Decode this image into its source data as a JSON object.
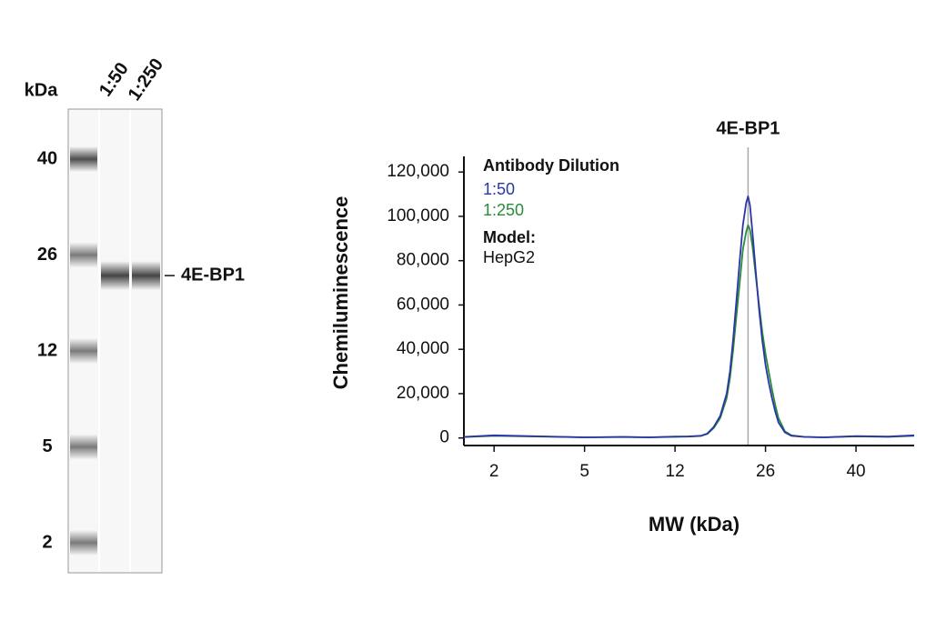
{
  "chart_data": [
    {
      "type": "gel",
      "y_label": "kDa",
      "yticks": [
        40,
        26,
        12,
        5,
        2
      ],
      "lanes": [
        "1:50",
        "1:250"
      ],
      "bands": [
        {
          "name": "4E-BP1",
          "mw": 23
        }
      ]
    },
    {
      "type": "line",
      "annotation": {
        "text": "4E-BP1",
        "x": 23.3
      },
      "x_label": "MW (kDa)",
      "y_label": "Chemiluminescence",
      "legend_title": "Antibody Dilution",
      "model_label": "Model:",
      "model": "HepG2",
      "x": [
        1,
        2,
        5,
        8,
        10,
        12,
        14,
        16,
        17,
        18,
        19,
        20,
        20.5,
        21,
        21.5,
        22,
        22.5,
        23,
        23.3,
        23.6,
        24,
        24.5,
        25,
        25.5,
        26,
        26.5,
        27,
        27.5,
        28,
        29,
        30,
        32,
        35,
        40,
        45,
        49
      ],
      "series": [
        {
          "name": "1:50",
          "color": "#2a35a8",
          "values": [
            500,
            1200,
            300,
            500,
            300,
            600,
            700,
            1000,
            2000,
            5000,
            10000,
            20000,
            30000,
            45000,
            62000,
            80000,
            96000,
            106000,
            109000,
            105000,
            92000,
            75000,
            58000,
            44000,
            33000,
            25000,
            18000,
            12000,
            7000,
            2500,
            1000,
            500,
            300,
            800,
            600,
            1200
          ]
        },
        {
          "name": "1:250",
          "color": "#2a8a3a",
          "values": [
            400,
            1000,
            300,
            400,
            300,
            500,
            600,
            900,
            1800,
            4500,
            9000,
            18000,
            27000,
            40000,
            55000,
            70000,
            85000,
            93000,
            96000,
            94000,
            86000,
            73000,
            60000,
            48000,
            38000,
            30000,
            22000,
            15000,
            9000,
            3000,
            1200,
            500,
            300,
            700,
            500,
            1000
          ]
        }
      ],
      "xlim": [
        1,
        49
      ],
      "xticks": [
        2,
        5,
        12,
        26,
        40
      ],
      "ylim": [
        -3000,
        125000
      ],
      "yticks": [
        0,
        {
          "value": 20000,
          "label": "20,000"
        },
        {
          "value": 40000,
          "label": "40,000"
        },
        {
          "value": 60000,
          "label": "60,000"
        },
        {
          "value": 80000,
          "label": "80,000"
        },
        {
          "value": 100000,
          "label": "100,000"
        },
        {
          "value": 120000,
          "label": "120,000"
        }
      ],
      "grid": false
    }
  ]
}
